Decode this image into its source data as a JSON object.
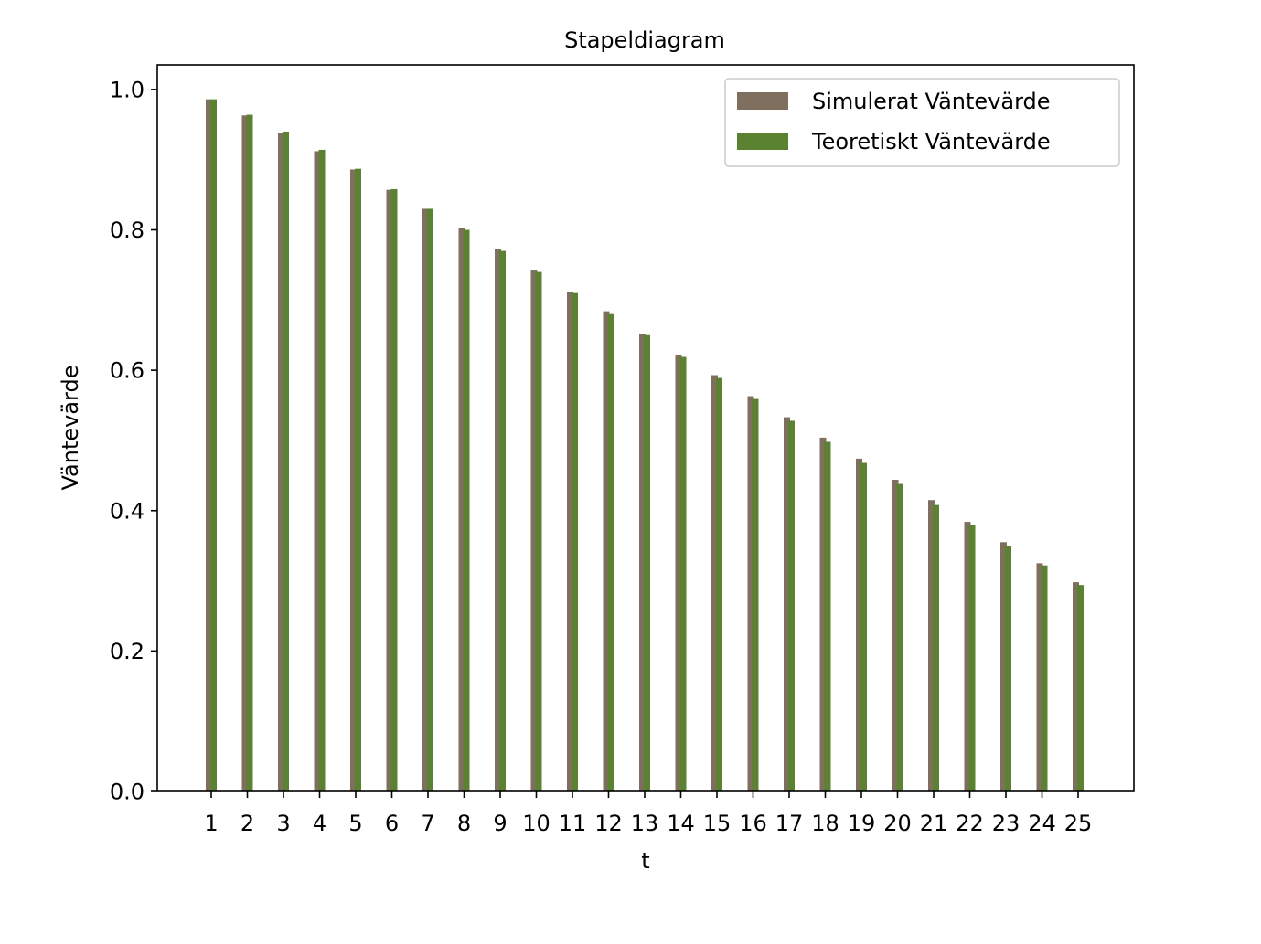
{
  "chart_data": {
    "type": "bar",
    "title": "Stapeldiagram",
    "xlabel": "t",
    "ylabel": "Väntevärde",
    "categories": [
      "1",
      "2",
      "3",
      "4",
      "5",
      "6",
      "7",
      "8",
      "9",
      "10",
      "11",
      "12",
      "13",
      "14",
      "15",
      "16",
      "17",
      "18",
      "19",
      "20",
      "21",
      "22",
      "23",
      "24",
      "25"
    ],
    "series": [
      {
        "name": "Simulerat Väntevärde",
        "color": "#7f6f5f",
        "values": [
          0.986,
          0.963,
          0.938,
          0.912,
          0.886,
          0.857,
          0.83,
          0.802,
          0.772,
          0.742,
          0.712,
          0.684,
          0.652,
          0.621,
          0.593,
          0.563,
          0.533,
          0.504,
          0.474,
          0.444,
          0.415,
          0.384,
          0.355,
          0.325,
          0.298
        ]
      },
      {
        "name": "Teoretiskt Väntevärde",
        "color": "#5a8230",
        "values": [
          0.986,
          0.964,
          0.94,
          0.914,
          0.887,
          0.858,
          0.83,
          0.8,
          0.77,
          0.74,
          0.71,
          0.68,
          0.65,
          0.619,
          0.589,
          0.559,
          0.528,
          0.498,
          0.468,
          0.438,
          0.408,
          0.379,
          0.35,
          0.322,
          0.294
        ]
      }
    ],
    "ylim": [
      0,
      1.035
    ],
    "yticks": [
      "0.0",
      "0.2",
      "0.4",
      "0.6",
      "0.8",
      "1.0"
    ],
    "grid": false,
    "legend": "top-right"
  }
}
